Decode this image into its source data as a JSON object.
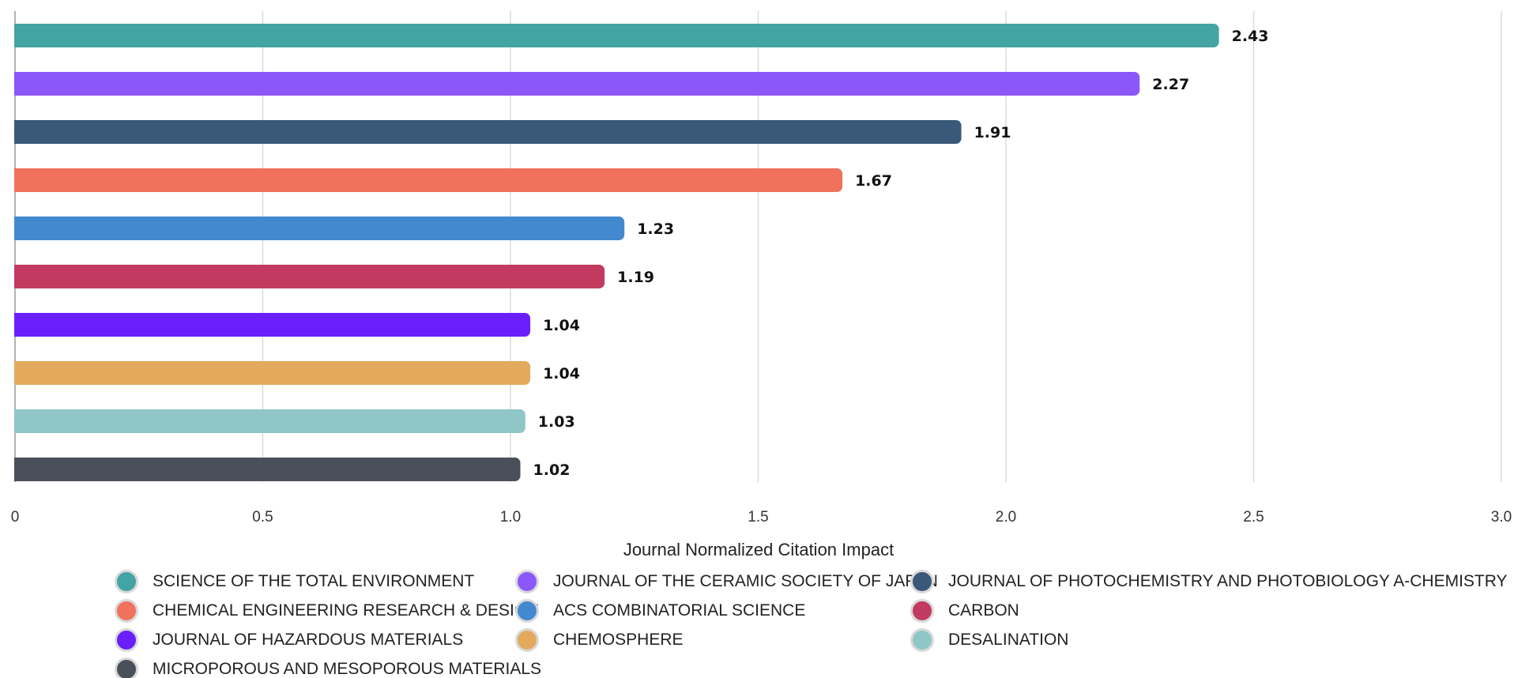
{
  "chart_data": {
    "type": "bar",
    "orientation": "horizontal",
    "categories": [
      "SCIENCE OF THE TOTAL ENVIRONMENT",
      "JOURNAL OF THE CERAMIC SOCIETY OF JAPAN",
      "JOURNAL OF PHOTOCHEMISTRY AND PHOTOBIOLOGY A-CHEMISTRY",
      "CHEMICAL ENGINEERING RESEARCH & DESIGN",
      "ACS COMBINATORIAL SCIENCE",
      "CARBON",
      "JOURNAL OF HAZARDOUS MATERIALS",
      "CHEMOSPHERE",
      "DESALINATION",
      "MICROPOROUS AND MESOPOROUS MATERIALS"
    ],
    "values": [
      2.43,
      2.27,
      1.91,
      1.67,
      1.23,
      1.19,
      1.04,
      1.04,
      1.03,
      1.02
    ],
    "value_labels": [
      "2.43",
      "2.27",
      "1.91",
      "1.67",
      "1.23",
      "1.19",
      "1.04",
      "1.04",
      "1.03",
      "1.02"
    ],
    "colors": [
      "#44a3a3",
      "#8b57fb",
      "#3a5878",
      "#f0725c",
      "#4389d0",
      "#c23a5f",
      "#6a1ffa",
      "#e3aa5e",
      "#8fc6c6",
      "#4a5059"
    ],
    "xlabel": "Journal Normalized Citation Impact",
    "xlim": [
      0,
      3.0
    ],
    "xticks": [
      0,
      0.5,
      1.0,
      1.5,
      2.0,
      2.5,
      3.0
    ],
    "xtick_labels": [
      "0",
      "0.5",
      "1.0",
      "1.5",
      "2.0",
      "2.5",
      "3.0"
    ],
    "grid": true,
    "legend_position": "bottom"
  }
}
